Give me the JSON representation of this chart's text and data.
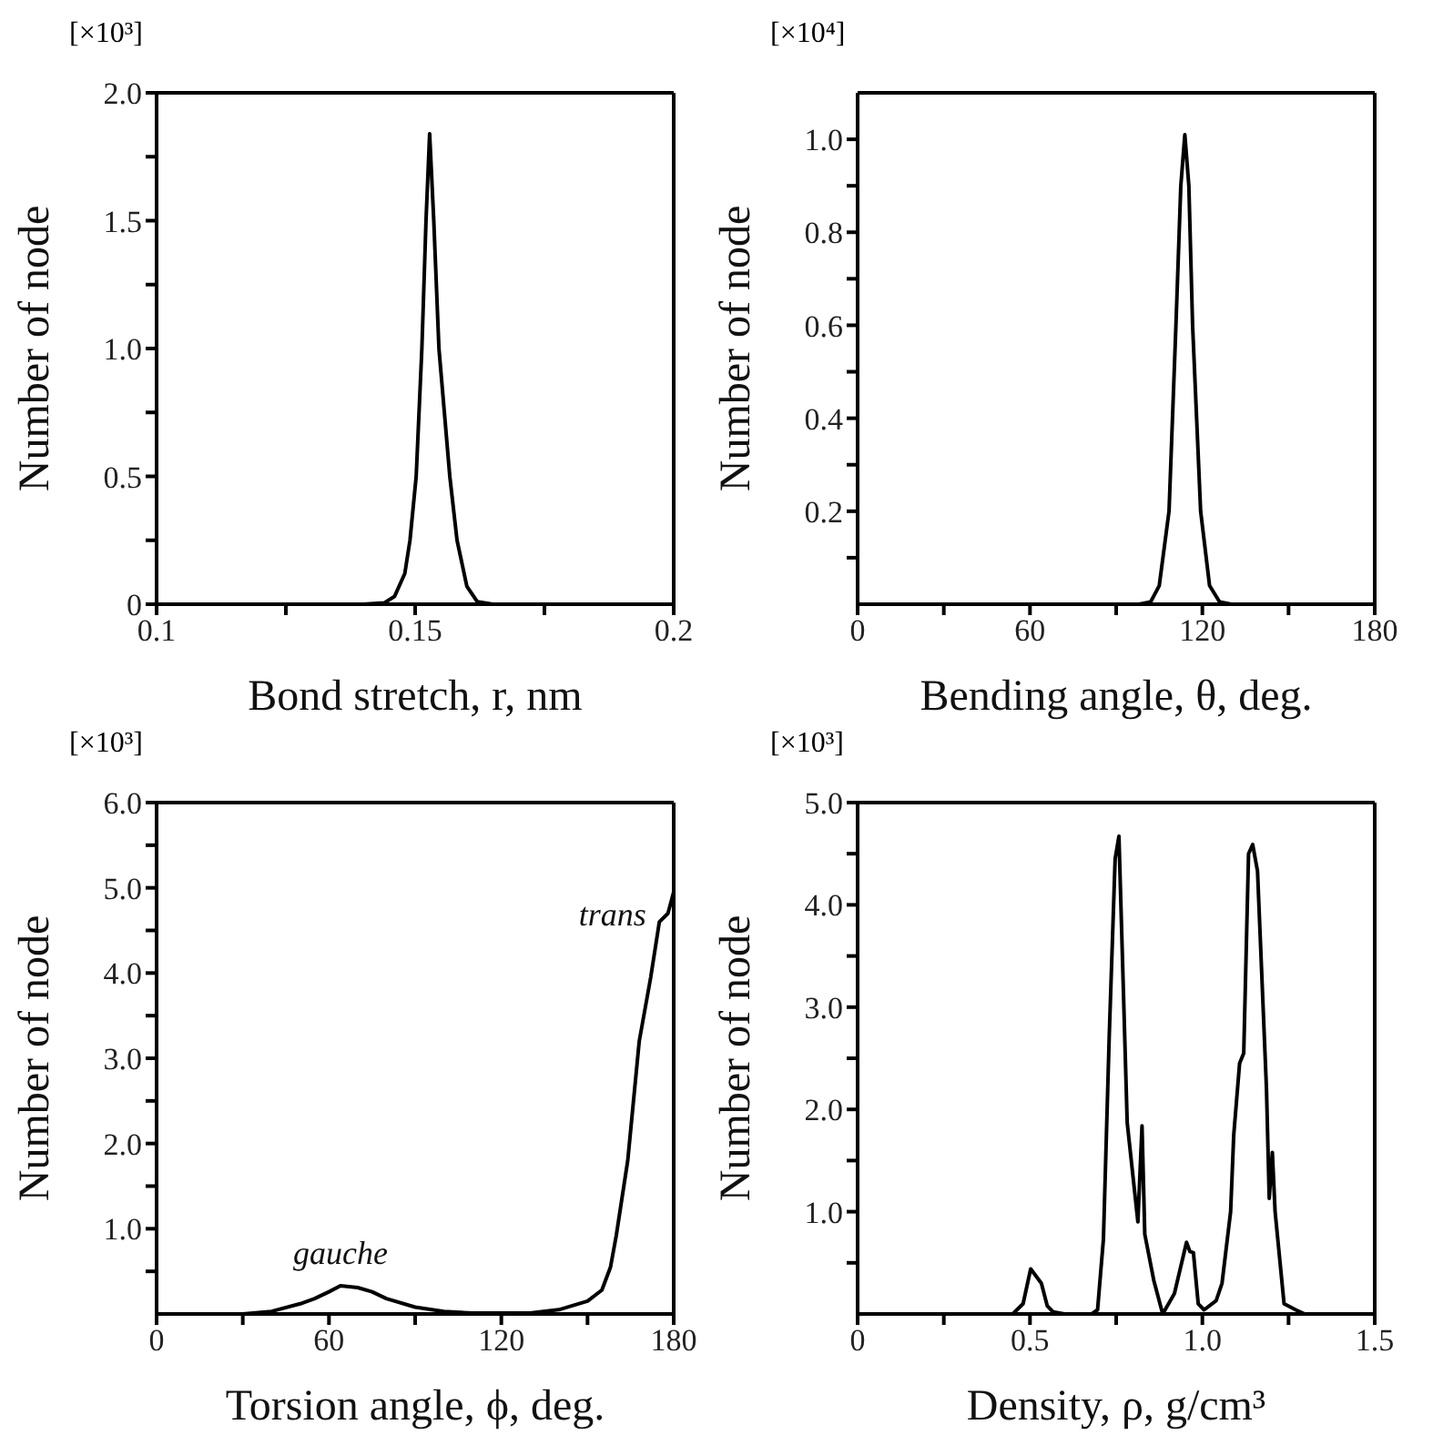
{
  "chart_data": [
    {
      "type": "line",
      "xlabel": "Bond stretch,  r,  nm",
      "ylabel": "Number of node",
      "annotations": [
        "[×10³]"
      ],
      "xlim": [
        0.1,
        0.2
      ],
      "xticks": [
        0.1,
        {
          "value": 0.125,
          "label": null
        },
        0.15,
        {
          "value": 0.175,
          "label": null
        },
        0.2
      ],
      "ylim": [
        0,
        2
      ],
      "yticks": [
        0,
        {
          "value": 0.25,
          "label": null
        },
        0.5,
        {
          "value": 0.75,
          "label": null
        },
        {
          "value": 1,
          "label": "1.0"
        },
        {
          "value": 1.25,
          "label": null
        },
        1.5,
        {
          "value": 1.75,
          "label": null
        },
        {
          "value": 2,
          "label": "2.0"
        }
      ],
      "series": [
        {
          "color": "#000000",
          "x": [
            0.1,
            0.14,
            0.144,
            0.146,
            0.148,
            0.149,
            0.1502,
            0.1513,
            0.1521,
            0.1528,
            0.1536,
            0.1546,
            0.1567,
            0.1581,
            0.16,
            0.162,
            0.165,
            0.2
          ],
          "values": [
            0,
            0,
            0.005,
            0.03,
            0.12,
            0.25,
            0.5,
            1.0,
            1.5,
            1.84,
            1.5,
            1.0,
            0.5,
            0.25,
            0.07,
            0.01,
            0,
            0
          ]
        }
      ]
    },
    {
      "type": "line",
      "xlabel": "Bending angle,  θ,  deg.",
      "ylabel": "Number of node",
      "annotations": [
        "[×10⁴]"
      ],
      "xlim": [
        0,
        180
      ],
      "xticks": [
        0,
        {
          "value": 30,
          "label": null
        },
        60,
        {
          "value": 90,
          "label": null
        },
        120,
        {
          "value": 150,
          "label": null
        },
        180
      ],
      "ylim": [
        0,
        1.1
      ],
      "yticks": [
        {
          "value": 0.1,
          "label": null
        },
        0.2,
        {
          "value": 0.3,
          "label": null
        },
        0.4,
        {
          "value": 0.5,
          "label": null
        },
        0.6,
        {
          "value": 0.7,
          "label": null
        },
        0.8,
        {
          "value": 0.9,
          "label": null
        },
        {
          "value": 1,
          "label": "1.0"
        }
      ],
      "series": [
        {
          "color": "#000000",
          "x": [
            0,
            98,
            102,
            105,
            108.4,
            110.8,
            112.5,
            113.9,
            115.3,
            116.6,
            119.4,
            122.5,
            126,
            130,
            180
          ],
          "values": [
            0,
            0,
            0.005,
            0.04,
            0.2,
            0.6,
            0.9,
            1.01,
            0.9,
            0.6,
            0.2,
            0.04,
            0.005,
            0,
            0
          ]
        }
      ]
    },
    {
      "type": "line",
      "xlabel": "Torsion angle,  ϕ,  deg.",
      "ylabel": "Number of node",
      "annotations": [
        "[×10³]",
        {
          "text": "gauche",
          "x": 64,
          "y": 0.33
        },
        {
          "text": "trans",
          "x": 178,
          "y": 4.7
        }
      ],
      "xlim": [
        0,
        180
      ],
      "xticks": [
        0,
        {
          "value": 30,
          "label": null
        },
        60,
        {
          "value": 90,
          "label": null
        },
        120,
        {
          "value": 150,
          "label": null
        },
        180
      ],
      "ylim": [
        0,
        6
      ],
      "yticks": [
        {
          "value": 0.5,
          "label": null
        },
        {
          "value": 1,
          "label": "1.0"
        },
        {
          "value": 1.5,
          "label": null
        },
        {
          "value": 2,
          "label": "2.0"
        },
        {
          "value": 2.5,
          "label": null
        },
        {
          "value": 3,
          "label": "3.0"
        },
        {
          "value": 3.5,
          "label": null
        },
        {
          "value": 4,
          "label": "4.0"
        },
        {
          "value": 4.5,
          "label": null
        },
        {
          "value": 5,
          "label": "5.0"
        },
        {
          "value": 5.5,
          "label": null
        },
        {
          "value": 6,
          "label": "6.0"
        }
      ],
      "series": [
        {
          "color": "#000000",
          "x": [
            0,
            30,
            40,
            50,
            55,
            60,
            64,
            70,
            75,
            80,
            90,
            100,
            110,
            130,
            140,
            145,
            150,
            155,
            158,
            160,
            164,
            168,
            172,
            175,
            178,
            180
          ],
          "values": [
            0,
            0,
            0.03,
            0.12,
            0.18,
            0.26,
            0.33,
            0.31,
            0.26,
            0.18,
            0.08,
            0.03,
            0.01,
            0.01,
            0.05,
            0.1,
            0.15,
            0.28,
            0.55,
            0.92,
            1.8,
            3.2,
            3.95,
            4.6,
            4.7,
            4.95
          ]
        }
      ]
    },
    {
      "type": "line",
      "xlabel": "Density,  ρ,  g/cm³",
      "ylabel": "Number of node",
      "annotations": [
        "[×10³]"
      ],
      "xlim": [
        0,
        1.5
      ],
      "xticks": [
        0,
        {
          "value": 0.25,
          "label": null
        },
        0.5,
        {
          "value": 0.75,
          "label": null
        },
        {
          "value": 1,
          "label": "1.0"
        },
        {
          "value": 1.25,
          "label": null
        },
        1.5
      ],
      "ylim": [
        0,
        5
      ],
      "yticks": [
        {
          "value": 0.5,
          "label": null
        },
        {
          "value": 1,
          "label": "1.0"
        },
        {
          "value": 1.5,
          "label": null
        },
        {
          "value": 2,
          "label": "2.0"
        },
        {
          "value": 2.5,
          "label": null
        },
        {
          "value": 3,
          "label": "3.0"
        },
        {
          "value": 3.5,
          "label": null
        },
        {
          "value": 4,
          "label": "4.0"
        },
        {
          "value": 4.5,
          "label": null
        },
        {
          "value": 5,
          "label": "5.0"
        }
      ],
      "series": [
        {
          "color": "#000000",
          "x": [
            0,
            0.45,
            0.48,
            0.502,
            0.533,
            0.55,
            0.567,
            0.6,
            0.679,
            0.696,
            0.713,
            0.73,
            0.747,
            0.758,
            0.782,
            0.813,
            0.825,
            0.833,
            0.859,
            0.885,
            0.919,
            0.954,
            0.964,
            0.974,
            0.988,
            1.005,
            1.04,
            1.057,
            1.082,
            1.091,
            1.108,
            1.12,
            1.134,
            1.146,
            1.16,
            1.186,
            1.194,
            1.203,
            1.211,
            1.237,
            1.271,
            1.297,
            1.5
          ],
          "values": [
            0,
            0,
            0.1,
            0.44,
            0.3,
            0.08,
            0.02,
            0,
            0,
            0.04,
            0.73,
            2.73,
            4.45,
            4.67,
            1.87,
            0.9,
            1.84,
            0.78,
            0.33,
            0,
            0.2,
            0.7,
            0.61,
            0.6,
            0.1,
            0.04,
            0.13,
            0.3,
            1.0,
            1.75,
            2.45,
            2.55,
            4.5,
            4.59,
            4.33,
            2.2,
            1.13,
            1.58,
            1.0,
            0.1,
            0.04,
            0,
            0
          ]
        }
      ]
    }
  ]
}
